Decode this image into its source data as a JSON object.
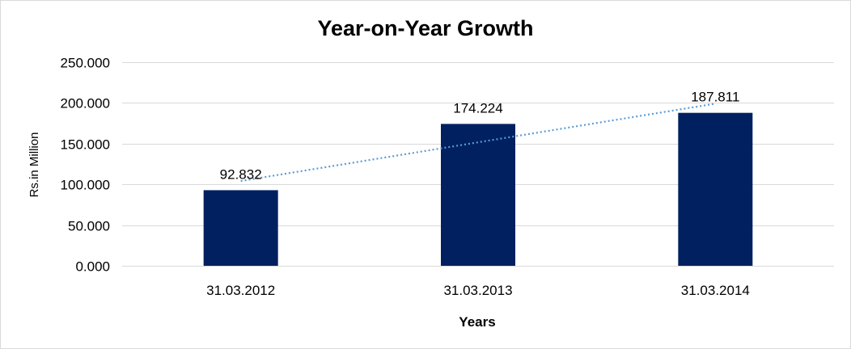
{
  "chart_data": {
    "type": "bar",
    "title": "Year-on-Year Growth",
    "xlabel": "Years",
    "ylabel": "Rs.in Million",
    "categories": [
      "31.03.2012",
      "31.03.2013",
      "31.03.2014"
    ],
    "values": [
      92.832,
      174.224,
      187.811
    ],
    "value_labels": [
      "92.832",
      "174.224",
      "187.811"
    ],
    "ylim": [
      0,
      250
    ],
    "yticks": [
      0,
      50,
      100,
      150,
      200,
      250
    ],
    "ytick_labels": [
      "0.000",
      "50.000",
      "100.000",
      "150.000",
      "200.000",
      "250.000"
    ],
    "grid": true,
    "legend": "none",
    "trendline": "linear dotted",
    "colors": {
      "bar": "#002060",
      "trendline": "#5b9bd5",
      "grid": "#d9d9d9"
    }
  }
}
